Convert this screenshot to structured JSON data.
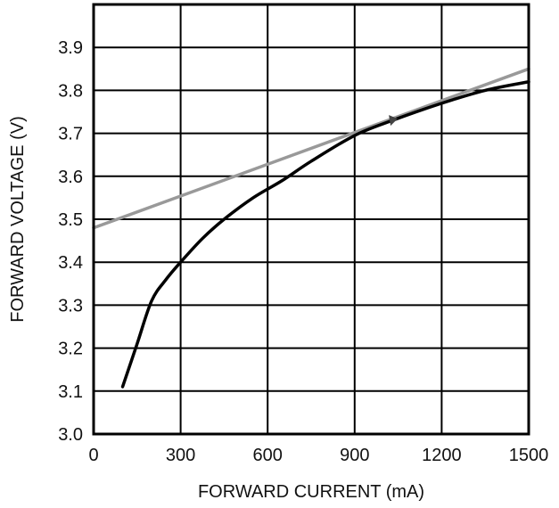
{
  "chart_data": {
    "type": "line",
    "title": "",
    "xlabel": "FORWARD CURRENT (mA)",
    "ylabel": "FORWARD VOLTAGE (V)",
    "xlim": [
      0,
      1500
    ],
    "ylim": [
      3.0,
      4.0
    ],
    "x_ticks": [
      "0",
      "300",
      "600",
      "900",
      "1200",
      "1500"
    ],
    "y_ticks": [
      "3.0",
      "3.1",
      "3.2",
      "3.3",
      "3.4",
      "3.5",
      "3.6",
      "3.7",
      "3.8",
      "3.9"
    ],
    "grid": true,
    "legend": "none",
    "series": [
      {
        "color": "#000000",
        "x": [
          100,
          150,
          200,
          250,
          300,
          375,
          450,
          550,
          650,
          750,
          900,
          1030,
          1200,
          1350,
          1500
        ],
        "y": [
          3.11,
          3.21,
          3.31,
          3.36,
          3.4,
          3.455,
          3.5,
          3.55,
          3.59,
          3.635,
          3.695,
          3.73,
          3.77,
          3.8,
          3.82
        ]
      },
      {
        "color": "#999999",
        "x": [
          0,
          1500
        ],
        "y": [
          3.48,
          3.85
        ]
      }
    ],
    "annotations": [
      {
        "type": "marker",
        "x": 1030,
        "y": 3.73,
        "color": "#444444"
      }
    ]
  }
}
